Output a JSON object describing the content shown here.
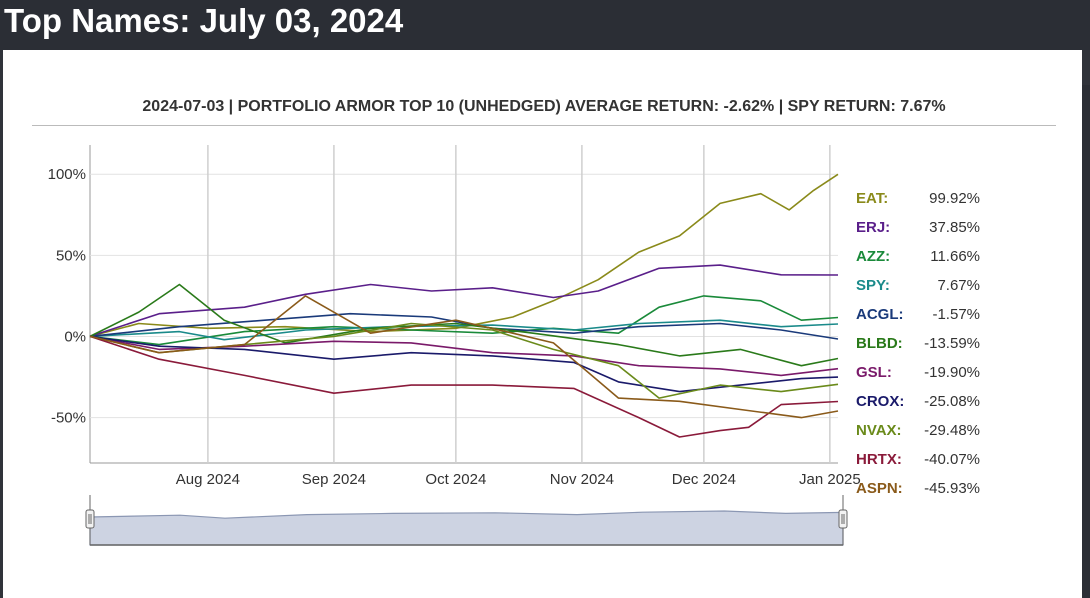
{
  "page": {
    "title": "Top Names: July 03, 2024"
  },
  "chart_data": {
    "type": "line",
    "title": "2024-07-03 | PORTFOLIO ARMOR TOP 10 (UNHEDGED) AVERAGE RETURN: -2.62% | SPY RETURN: 7.67%",
    "xlabel": "",
    "ylabel": "",
    "x_ticks": [
      "Aug 2024",
      "Sep 2024",
      "Oct 2024",
      "Nov 2024",
      "Dec 2024",
      "Jan 2025"
    ],
    "y_ticks": [
      "100%",
      "50%",
      "0%",
      "-50%"
    ],
    "x_range": [
      "2024-07-03",
      "2025-01-03"
    ],
    "ylim": [
      -78,
      118
    ],
    "grid": true,
    "legend_position": "right",
    "has_navigator": true,
    "series": [
      {
        "name": "EAT",
        "color": "#8a8a1a",
        "final": 99.92,
        "points": [
          [
            "2024-07-03",
            0
          ],
          [
            "2024-07-15",
            8
          ],
          [
            "2024-08-01",
            5
          ],
          [
            "2024-08-20",
            6
          ],
          [
            "2024-09-10",
            3
          ],
          [
            "2024-10-01",
            5
          ],
          [
            "2024-10-15",
            12
          ],
          [
            "2024-10-25",
            22
          ],
          [
            "2024-11-05",
            35
          ],
          [
            "2024-11-15",
            52
          ],
          [
            "2024-11-25",
            62
          ],
          [
            "2024-12-05",
            82
          ],
          [
            "2024-12-15",
            88
          ],
          [
            "2024-12-22",
            78
          ],
          [
            "2024-12-28",
            90
          ],
          [
            "2025-01-03",
            99.92
          ]
        ]
      },
      {
        "name": "ERJ",
        "color": "#5a1f8a",
        "final": 37.85,
        "points": [
          [
            "2024-07-03",
            0
          ],
          [
            "2024-07-20",
            14
          ],
          [
            "2024-08-10",
            18
          ],
          [
            "2024-08-25",
            26
          ],
          [
            "2024-09-10",
            32
          ],
          [
            "2024-09-25",
            28
          ],
          [
            "2024-10-10",
            30
          ],
          [
            "2024-10-25",
            24
          ],
          [
            "2024-11-05",
            28
          ],
          [
            "2024-11-20",
            42
          ],
          [
            "2024-12-05",
            44
          ],
          [
            "2024-12-20",
            38
          ],
          [
            "2025-01-03",
            37.85
          ]
        ]
      },
      {
        "name": "AZZ",
        "color": "#1a8a3a",
        "final": 11.66,
        "points": [
          [
            "2024-07-03",
            0
          ],
          [
            "2024-07-20",
            -5
          ],
          [
            "2024-08-10",
            3
          ],
          [
            "2024-09-01",
            6
          ],
          [
            "2024-09-20",
            4
          ],
          [
            "2024-10-10",
            2
          ],
          [
            "2024-10-25",
            5
          ],
          [
            "2024-11-10",
            2
          ],
          [
            "2024-11-20",
            18
          ],
          [
            "2024-12-01",
            25
          ],
          [
            "2024-12-15",
            22
          ],
          [
            "2024-12-25",
            10
          ],
          [
            "2025-01-03",
            11.66
          ]
        ]
      },
      {
        "name": "SPY",
        "color": "#1a8a8a",
        "final": 7.67,
        "points": [
          [
            "2024-07-03",
            0
          ],
          [
            "2024-07-25",
            3
          ],
          [
            "2024-08-05",
            -2
          ],
          [
            "2024-08-25",
            4
          ],
          [
            "2024-09-15",
            6
          ],
          [
            "2024-10-10",
            7
          ],
          [
            "2024-10-30",
            4
          ],
          [
            "2024-11-15",
            8
          ],
          [
            "2024-12-05",
            10
          ],
          [
            "2024-12-20",
            6
          ],
          [
            "2025-01-03",
            7.67
          ]
        ]
      },
      {
        "name": "ACGL",
        "color": "#1a3a7a",
        "final": -1.57,
        "points": [
          [
            "2024-07-03",
            0
          ],
          [
            "2024-07-25",
            6
          ],
          [
            "2024-08-15",
            10
          ],
          [
            "2024-09-05",
            14
          ],
          [
            "2024-09-25",
            12
          ],
          [
            "2024-10-10",
            5
          ],
          [
            "2024-10-30",
            2
          ],
          [
            "2024-11-15",
            6
          ],
          [
            "2024-12-05",
            8
          ],
          [
            "2024-12-20",
            4
          ],
          [
            "2025-01-03",
            -1.57
          ]
        ]
      },
      {
        "name": "BLBD",
        "color": "#2a7a1a",
        "final": -13.59,
        "points": [
          [
            "2024-07-03",
            0
          ],
          [
            "2024-07-15",
            15
          ],
          [
            "2024-07-25",
            32
          ],
          [
            "2024-08-05",
            10
          ],
          [
            "2024-08-20",
            -4
          ],
          [
            "2024-09-10",
            5
          ],
          [
            "2024-10-01",
            8
          ],
          [
            "2024-10-20",
            2
          ],
          [
            "2024-11-10",
            -5
          ],
          [
            "2024-11-25",
            -12
          ],
          [
            "2024-12-10",
            -8
          ],
          [
            "2024-12-25",
            -18
          ],
          [
            "2025-01-03",
            -13.59
          ]
        ]
      },
      {
        "name": "GSL",
        "color": "#7a1a6a",
        "final": -19.9,
        "points": [
          [
            "2024-07-03",
            0
          ],
          [
            "2024-07-20",
            -8
          ],
          [
            "2024-08-10",
            -6
          ],
          [
            "2024-09-01",
            -3
          ],
          [
            "2024-09-20",
            -4
          ],
          [
            "2024-10-10",
            -10
          ],
          [
            "2024-10-30",
            -12
          ],
          [
            "2024-11-15",
            -18
          ],
          [
            "2024-12-05",
            -20
          ],
          [
            "2024-12-20",
            -24
          ],
          [
            "2025-01-03",
            -19.9
          ]
        ]
      },
      {
        "name": "CROX",
        "color": "#1a1a6a",
        "final": -25.08,
        "points": [
          [
            "2024-07-03",
            0
          ],
          [
            "2024-07-20",
            -6
          ],
          [
            "2024-08-10",
            -8
          ],
          [
            "2024-09-01",
            -14
          ],
          [
            "2024-09-20",
            -10
          ],
          [
            "2024-10-10",
            -12
          ],
          [
            "2024-10-30",
            -16
          ],
          [
            "2024-11-10",
            -28
          ],
          [
            "2024-11-25",
            -34
          ],
          [
            "2024-12-10",
            -30
          ],
          [
            "2024-12-25",
            -26
          ],
          [
            "2025-01-03",
            -25.08
          ]
        ]
      },
      {
        "name": "NVAX",
        "color": "#6a8a1a",
        "final": -29.48,
        "points": [
          [
            "2024-07-03",
            0
          ],
          [
            "2024-07-20",
            -10
          ],
          [
            "2024-08-10",
            -5
          ],
          [
            "2024-09-01",
            0
          ],
          [
            "2024-09-20",
            8
          ],
          [
            "2024-10-10",
            4
          ],
          [
            "2024-10-25",
            -8
          ],
          [
            "2024-11-10",
            -18
          ],
          [
            "2024-11-20",
            -38
          ],
          [
            "2024-12-05",
            -30
          ],
          [
            "2024-12-20",
            -34
          ],
          [
            "2025-01-03",
            -29.48
          ]
        ]
      },
      {
        "name": "HRTX",
        "color": "#8a1a3a",
        "final": -40.07,
        "points": [
          [
            "2024-07-03",
            0
          ],
          [
            "2024-07-20",
            -14
          ],
          [
            "2024-08-10",
            -24
          ],
          [
            "2024-09-01",
            -35
          ],
          [
            "2024-09-20",
            -30
          ],
          [
            "2024-10-10",
            -30
          ],
          [
            "2024-10-30",
            -32
          ],
          [
            "2024-11-15",
            -50
          ],
          [
            "2024-11-25",
            -62
          ],
          [
            "2024-12-05",
            -58
          ],
          [
            "2024-12-12",
            -56
          ],
          [
            "2024-12-20",
            -42
          ],
          [
            "2025-01-03",
            -40.07
          ]
        ]
      },
      {
        "name": "ASPN",
        "color": "#8a5a1a",
        "final": -45.93,
        "points": [
          [
            "2024-07-03",
            0
          ],
          [
            "2024-07-20",
            -10
          ],
          [
            "2024-08-10",
            -5
          ],
          [
            "2024-08-25",
            25
          ],
          [
            "2024-09-10",
            2
          ],
          [
            "2024-10-01",
            10
          ],
          [
            "2024-10-15",
            2
          ],
          [
            "2024-10-25",
            -4
          ],
          [
            "2024-11-10",
            -38
          ],
          [
            "2024-11-25",
            -40
          ],
          [
            "2024-12-10",
            -45
          ],
          [
            "2024-12-25",
            -50
          ],
          [
            "2025-01-03",
            -45.93
          ]
        ]
      }
    ]
  }
}
